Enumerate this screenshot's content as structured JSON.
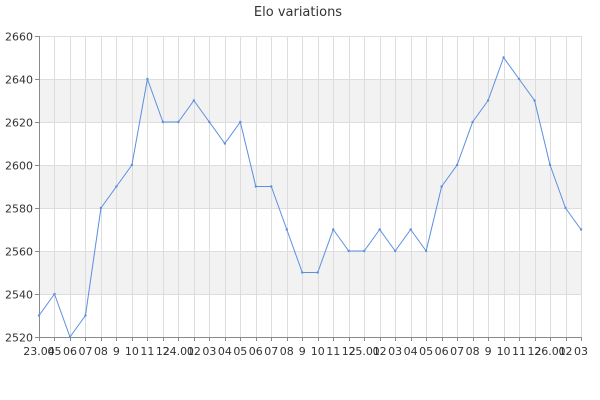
{
  "chart_data": {
    "type": "line",
    "title": "Elo variations",
    "xlabel": "",
    "ylabel": "",
    "ylim": [
      2520,
      2660
    ],
    "yticks": [
      2520,
      2540,
      2560,
      2580,
      2600,
      2620,
      2640,
      2660
    ],
    "grid": true,
    "legend": "none",
    "colors": {
      "line": "#5b8fe0",
      "grid": "#dddddd",
      "band": "#f2f2f2",
      "axis": "#8a8a8a",
      "text": "#333333"
    },
    "x_labels": [
      "23.04",
      "05",
      "06",
      "07",
      "08",
      "9",
      "10",
      "11",
      "12",
      "24.01",
      "02",
      "03",
      "04",
      "05",
      "06",
      "07",
      "08",
      "9",
      "10",
      "11",
      "12",
      "25.01",
      "02",
      "03",
      "04",
      "05",
      "06",
      "07",
      "08",
      "9",
      "10",
      "11",
      "12",
      "26.01",
      "02",
      "03"
    ],
    "series": [
      {
        "values": [
          2530,
          2540,
          2520,
          2530,
          2580,
          2590,
          2600,
          2640,
          2620,
          2620,
          2630,
          2620,
          2610,
          2620,
          2590,
          2590,
          2570,
          2550,
          2550,
          2570,
          2560,
          2560,
          2570,
          2560,
          2570,
          2560,
          2590,
          2600,
          2620,
          2630,
          2650,
          2640,
          2630,
          2600,
          2580,
          2570
        ]
      }
    ]
  }
}
